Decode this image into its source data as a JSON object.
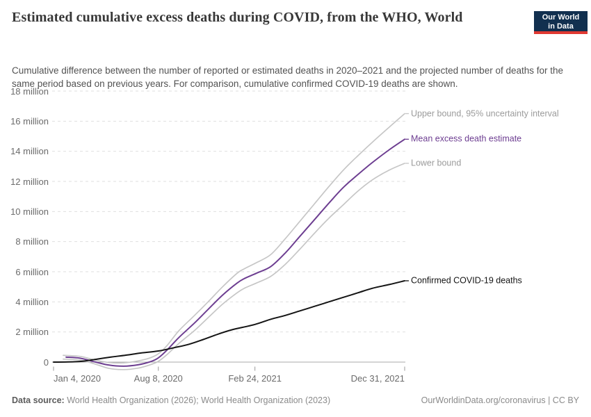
{
  "header": {
    "title": "Estimated cumulative excess deaths during COVID, from the WHO, World",
    "subtitle": "Cumulative difference between the number of reported or estimated deaths in 2020–2021 and the projected number of deaths for the same period based on previous years. For comparison, cumulative confirmed COVID-19 deaths are shown.",
    "logo": {
      "line1": "Our World",
      "line2": "in Data",
      "bg_color": "#12304f",
      "accent_red": "#e03932"
    }
  },
  "chart_data": {
    "type": "line",
    "grid": true,
    "x_axis": {
      "range_days": [
        0,
        727
      ],
      "ticks": [
        {
          "day": 0,
          "label": "Jan 4, 2020",
          "align": "left"
        },
        {
          "day": 217,
          "label": "Aug 8, 2020",
          "align": "center"
        },
        {
          "day": 417,
          "label": "Feb 24, 2021",
          "align": "center"
        },
        {
          "day": 727,
          "label": "Dec 31, 2021",
          "align": "right"
        }
      ]
    },
    "y_axis": {
      "max": 18,
      "unit": "million",
      "ticks": [
        {
          "value": 0,
          "label": "0"
        },
        {
          "value": 2,
          "label": "2 million"
        },
        {
          "value": 4,
          "label": "4 million"
        },
        {
          "value": 6,
          "label": "6 million"
        },
        {
          "value": 8,
          "label": "8 million"
        },
        {
          "value": 10,
          "label": "10 million"
        },
        {
          "value": 12,
          "label": "12 million"
        },
        {
          "value": 14,
          "label": "14 million"
        },
        {
          "value": 16,
          "label": "16 million"
        },
        {
          "value": 18,
          "label": "18 million"
        }
      ]
    },
    "series": [
      {
        "id": "upper-bound",
        "name": "Upper bound, 95% uncertainty interval",
        "color": "#c6c6c6",
        "label_color": "#9b9b9b",
        "width": 1.7,
        "points": [
          [
            20,
            0.45
          ],
          [
            55,
            0.38
          ],
          [
            85,
            0.15
          ],
          [
            115,
            -0.03
          ],
          [
            145,
            -0.05
          ],
          [
            175,
            0.08
          ],
          [
            200,
            0.28
          ],
          [
            217,
            0.55
          ],
          [
            235,
            1.1
          ],
          [
            260,
            2.1
          ],
          [
            292,
            3.1
          ],
          [
            320,
            4.0
          ],
          [
            350,
            5.0
          ],
          [
            380,
            5.9
          ],
          [
            395,
            6.2
          ],
          [
            420,
            6.6
          ],
          [
            450,
            7.15
          ],
          [
            480,
            8.2
          ],
          [
            510,
            9.35
          ],
          [
            540,
            10.5
          ],
          [
            570,
            11.65
          ],
          [
            600,
            12.75
          ],
          [
            630,
            13.7
          ],
          [
            660,
            14.6
          ],
          [
            695,
            15.6
          ],
          [
            727,
            16.5
          ]
        ]
      },
      {
        "id": "lower-bound",
        "name": "Lower bound",
        "color": "#c6c6c6",
        "label_color": "#9b9b9b",
        "width": 1.7,
        "points": [
          [
            20,
            0.2
          ],
          [
            55,
            0.13
          ],
          [
            85,
            -0.12
          ],
          [
            115,
            -0.42
          ],
          [
            145,
            -0.5
          ],
          [
            175,
            -0.4
          ],
          [
            200,
            -0.18
          ],
          [
            217,
            0.05
          ],
          [
            235,
            0.5
          ],
          [
            260,
            1.25
          ],
          [
            292,
            2.1
          ],
          [
            320,
            2.95
          ],
          [
            350,
            3.85
          ],
          [
            380,
            4.6
          ],
          [
            395,
            4.9
          ],
          [
            420,
            5.25
          ],
          [
            450,
            5.7
          ],
          [
            480,
            6.5
          ],
          [
            510,
            7.5
          ],
          [
            540,
            8.55
          ],
          [
            570,
            9.55
          ],
          [
            600,
            10.45
          ],
          [
            630,
            11.35
          ],
          [
            660,
            12.1
          ],
          [
            695,
            12.75
          ],
          [
            727,
            13.2
          ]
        ]
      },
      {
        "id": "mean-excess-death-estimate",
        "name": "Mean excess death estimate",
        "color": "#6d3e91",
        "label_color": "#6d3e91",
        "width": 2,
        "points": [
          [
            26,
            0.33
          ],
          [
            55,
            0.26
          ],
          [
            85,
            0.02
          ],
          [
            115,
            -0.2
          ],
          [
            145,
            -0.27
          ],
          [
            175,
            -0.18
          ],
          [
            200,
            0.02
          ],
          [
            217,
            0.28
          ],
          [
            235,
            0.8
          ],
          [
            260,
            1.65
          ],
          [
            292,
            2.6
          ],
          [
            320,
            3.5
          ],
          [
            350,
            4.45
          ],
          [
            380,
            5.25
          ],
          [
            395,
            5.55
          ],
          [
            420,
            5.9
          ],
          [
            450,
            6.35
          ],
          [
            480,
            7.25
          ],
          [
            510,
            8.35
          ],
          [
            540,
            9.45
          ],
          [
            570,
            10.55
          ],
          [
            600,
            11.6
          ],
          [
            630,
            12.45
          ],
          [
            660,
            13.25
          ],
          [
            695,
            14.1
          ],
          [
            727,
            14.8
          ]
        ]
      },
      {
        "id": "confirmed-covid-19-deaths",
        "name": "Confirmed COVID-19 deaths",
        "color": "#141414",
        "label_color": "#141414",
        "width": 2,
        "points": [
          [
            0,
            0
          ],
          [
            30,
            0.01
          ],
          [
            60,
            0.06
          ],
          [
            90,
            0.2
          ],
          [
            120,
            0.34
          ],
          [
            150,
            0.46
          ],
          [
            180,
            0.6
          ],
          [
            217,
            0.74
          ],
          [
            250,
            0.96
          ],
          [
            280,
            1.18
          ],
          [
            310,
            1.5
          ],
          [
            340,
            1.85
          ],
          [
            370,
            2.15
          ],
          [
            417,
            2.5
          ],
          [
            450,
            2.85
          ],
          [
            480,
            3.1
          ],
          [
            510,
            3.4
          ],
          [
            540,
            3.7
          ],
          [
            570,
            4.0
          ],
          [
            600,
            4.3
          ],
          [
            630,
            4.6
          ],
          [
            660,
            4.9
          ],
          [
            695,
            5.15
          ],
          [
            727,
            5.4
          ]
        ]
      }
    ],
    "style": {
      "gridline_color": "#dfdfdf",
      "axis_line_color": "#a8a8a8",
      "tick_mark_color": "#9a9a9a"
    }
  },
  "footer": {
    "data_source_label": "Data source:",
    "data_source_text": " World Health Organization (2026); World Health Organization (2023)",
    "credit": "OurWorldinData.org/coronavirus | CC BY"
  }
}
